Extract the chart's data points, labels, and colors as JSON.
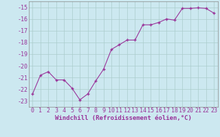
{
  "x": [
    0,
    1,
    2,
    3,
    4,
    5,
    6,
    7,
    8,
    9,
    10,
    11,
    12,
    13,
    14,
    15,
    16,
    17,
    18,
    19,
    20,
    21,
    22,
    23
  ],
  "y": [
    -22.4,
    -20.8,
    -20.5,
    -21.2,
    -21.2,
    -21.9,
    -22.9,
    -22.4,
    -21.3,
    -20.3,
    -18.6,
    -18.2,
    -17.8,
    -17.8,
    -16.5,
    -16.5,
    -16.3,
    -16.0,
    -16.1,
    -15.1,
    -15.1,
    -15.05,
    -15.1,
    -15.5
  ],
  "line_color": "#993399",
  "marker": "+",
  "marker_size": 3,
  "marker_linewidth": 1.0,
  "line_width": 0.8,
  "bg_color": "#cce8f0",
  "grid_color": "#aacccc",
  "xlabel": "Windchill (Refroidissement éolien,°C)",
  "xlabel_fontsize": 6.5,
  "tick_fontsize": 6.0,
  "ylim": [
    -23.5,
    -14.5
  ],
  "xlim": [
    -0.5,
    23.5
  ],
  "yticks": [
    -23,
    -22,
    -21,
    -20,
    -19,
    -18,
    -17,
    -16,
    -15
  ],
  "xticks": [
    0,
    1,
    2,
    3,
    4,
    5,
    6,
    7,
    8,
    9,
    10,
    11,
    12,
    13,
    14,
    15,
    16,
    17,
    18,
    19,
    20,
    21,
    22,
    23
  ]
}
